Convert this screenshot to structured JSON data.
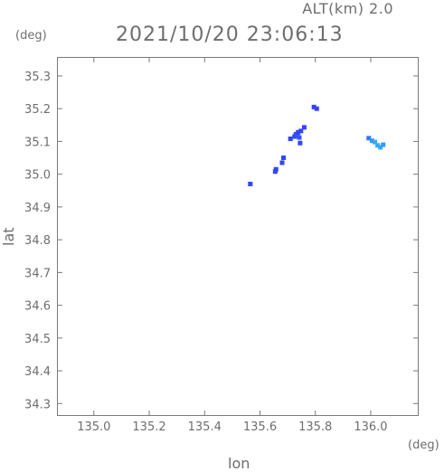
{
  "header": {
    "altitude": "ALT(km) 2.0",
    "timestamp": "2021/10/20 23:06:13"
  },
  "chart_data": {
    "type": "scatter",
    "title": "",
    "xlabel": "lon",
    "ylabel": "lat",
    "x_unit": "(deg)",
    "y_unit": "(deg)",
    "xlim": [
      134.87,
      136.17
    ],
    "ylim": [
      34.265,
      35.355
    ],
    "xticks": [
      135.0,
      135.2,
      135.4,
      135.6,
      135.8,
      136.0
    ],
    "xtick_labels": [
      "135.0",
      "135.2",
      "135.4",
      "135.6",
      "135.8",
      "136.0"
    ],
    "yticks": [
      34.3,
      34.4,
      34.5,
      34.6,
      34.7,
      34.8,
      34.9,
      35.0,
      35.1,
      35.2,
      35.3
    ],
    "ytick_labels": [
      "34.3",
      "34.4",
      "34.5",
      "34.6",
      "34.7",
      "34.8",
      "34.9",
      "35.0",
      "35.1",
      "35.2",
      "35.3"
    ],
    "grid": false,
    "colors": {
      "axis": "#7a7a7a",
      "blue": "#3344ff",
      "light_blue": "#33aaff"
    },
    "points": [
      {
        "x": 135.565,
        "y": 34.97,
        "color": "#3344ff"
      },
      {
        "x": 135.655,
        "y": 35.008,
        "color": "#3344ff"
      },
      {
        "x": 135.658,
        "y": 35.015,
        "color": "#3344ff"
      },
      {
        "x": 135.68,
        "y": 35.035,
        "color": "#3344ff"
      },
      {
        "x": 135.685,
        "y": 35.05,
        "color": "#3344ff"
      },
      {
        "x": 135.71,
        "y": 35.108,
        "color": "#3344ff"
      },
      {
        "x": 135.725,
        "y": 35.115,
        "color": "#3344ff"
      },
      {
        "x": 135.73,
        "y": 35.122,
        "color": "#3344ff"
      },
      {
        "x": 135.735,
        "y": 35.118,
        "color": "#3355ff"
      },
      {
        "x": 135.738,
        "y": 35.128,
        "color": "#3344ff"
      },
      {
        "x": 135.742,
        "y": 35.112,
        "color": "#3355ff"
      },
      {
        "x": 135.745,
        "y": 35.095,
        "color": "#3344ff"
      },
      {
        "x": 135.748,
        "y": 35.132,
        "color": "#3344ff"
      },
      {
        "x": 135.76,
        "y": 35.143,
        "color": "#3344ff"
      },
      {
        "x": 135.795,
        "y": 35.205,
        "color": "#3344ff"
      },
      {
        "x": 135.805,
        "y": 35.2,
        "color": "#3344ff"
      },
      {
        "x": 135.993,
        "y": 35.11,
        "color": "#3377ff"
      },
      {
        "x": 136.005,
        "y": 35.102,
        "color": "#3399ff"
      },
      {
        "x": 136.015,
        "y": 35.098,
        "color": "#33aaff"
      },
      {
        "x": 136.025,
        "y": 35.088,
        "color": "#33aaff"
      },
      {
        "x": 136.035,
        "y": 35.082,
        "color": "#33aaff"
      },
      {
        "x": 136.045,
        "y": 35.09,
        "color": "#3399ff"
      }
    ]
  }
}
